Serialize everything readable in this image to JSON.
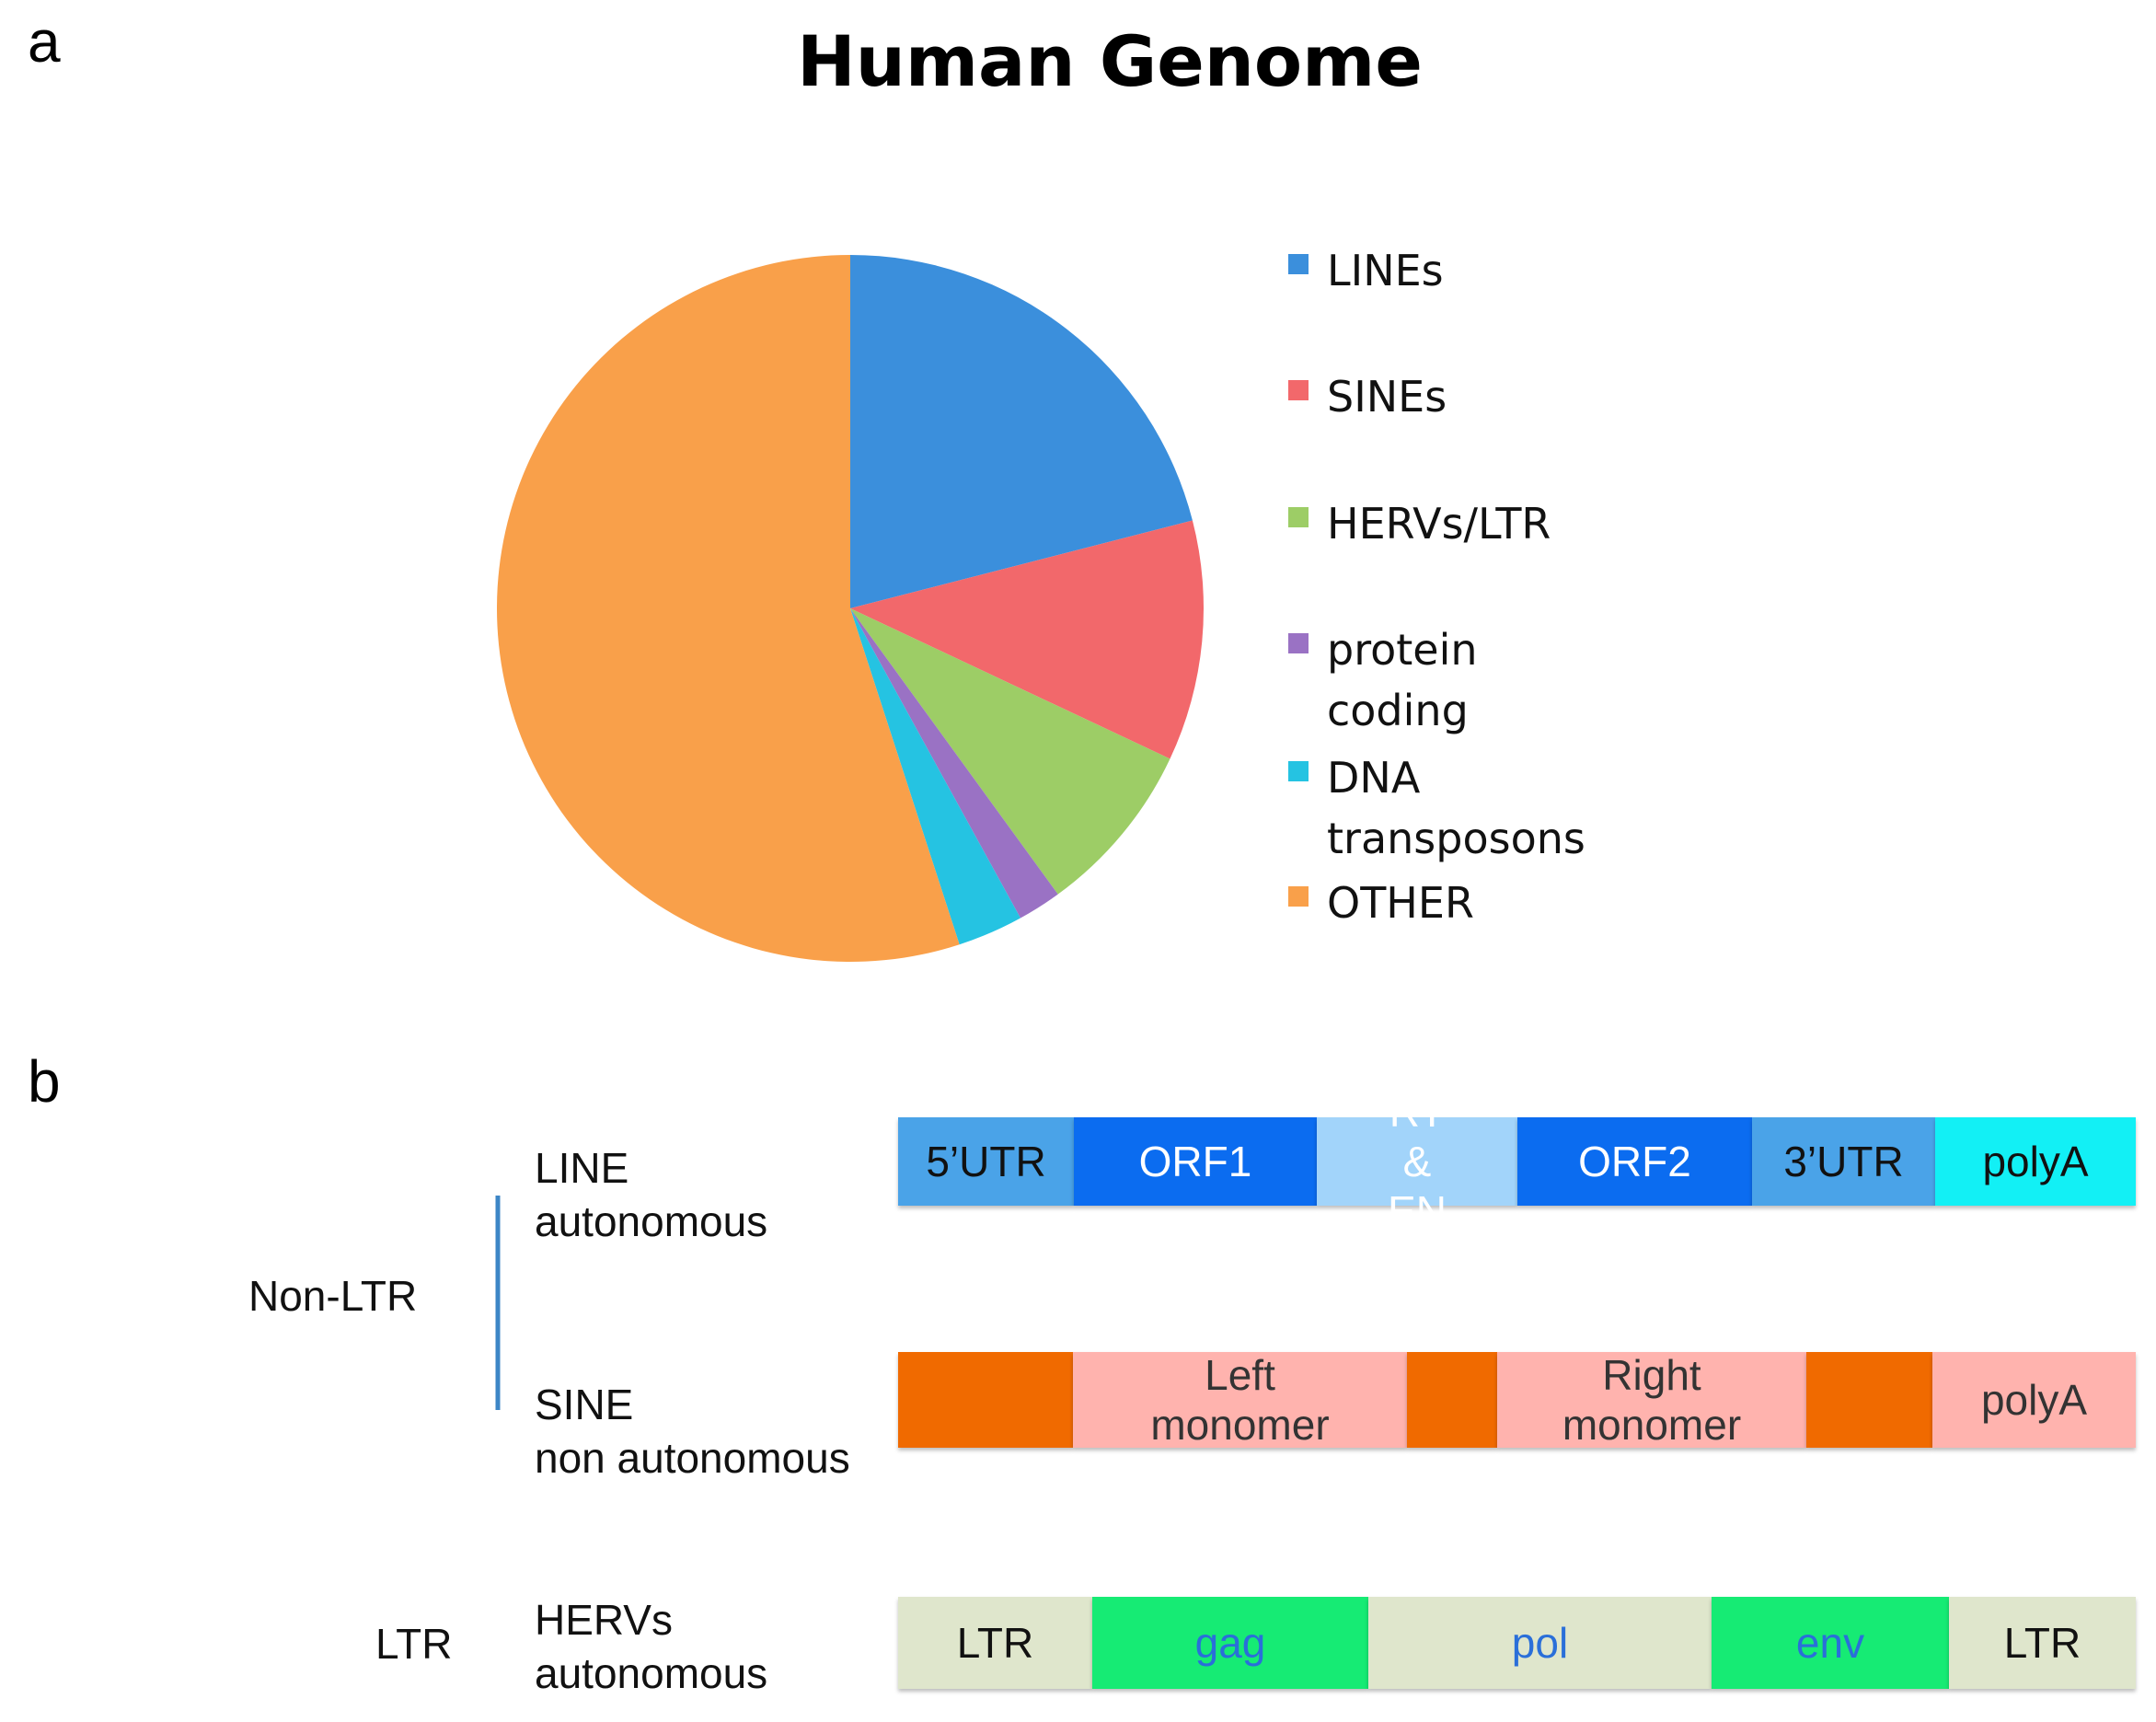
{
  "panel_labels": [
    "a",
    "b"
  ],
  "chart_data": {
    "type": "pie",
    "title": "Human Genome",
    "categories": [
      "LINEs",
      "SINEs",
      "HERVs/LTR",
      "protein coding",
      "DNA transposons",
      "OTHER"
    ],
    "values": [
      21,
      11,
      8,
      2,
      3,
      55
    ],
    "colors": [
      "#3b8fdc",
      "#f2686b",
      "#9dcd66",
      "#9a72c4",
      "#25c3e2",
      "#f9a04a"
    ],
    "start_angle": 0,
    "direction": "clockwise",
    "legend": "right"
  },
  "diagram": {
    "groups": [
      "Non-LTR",
      "LTR"
    ],
    "rows": [
      {
        "label": [
          "LINE",
          "autonomous"
        ],
        "segments": [
          "5’UTR",
          "ORF1",
          "RT & EN",
          "ORF2",
          "3’UTR",
          "polyA"
        ]
      },
      {
        "label": [
          "SINE",
          "non autonomous"
        ],
        "segments": [
          "Left monomer",
          "Right monomer",
          "polyA"
        ]
      },
      {
        "label": [
          "HERVs",
          "autonomous"
        ],
        "segments": [
          "LTR",
          "gag",
          "pol",
          "env",
          "LTR"
        ]
      }
    ]
  }
}
